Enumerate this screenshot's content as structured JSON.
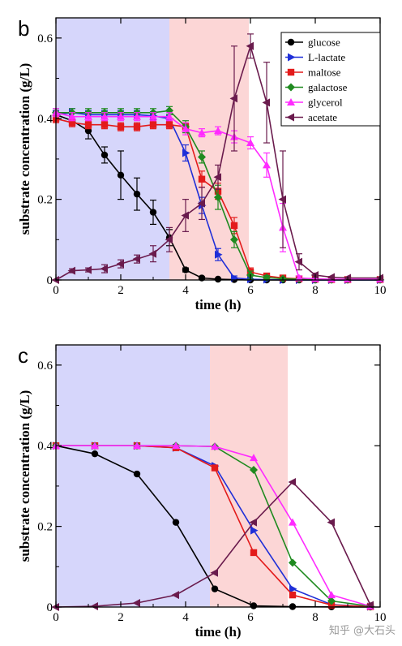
{
  "watermark": "知乎 @大石头",
  "colors": {
    "phase1": "#d6d6fb",
    "phase2": "#fcd6d6",
    "glucose": "#000000",
    "L-lactate": "#1f2fd8",
    "maltose": "#e31b1b",
    "galactose": "#1f8a1f",
    "glycerol": "#ff2bff",
    "acetate": "#6a1b4d"
  },
  "chart_data": [
    {
      "panel": "b",
      "type": "line",
      "xlabel": "time (h)",
      "ylabel": "substrate concentration (g/L)",
      "xlim": [
        0,
        10
      ],
      "ylim": [
        0,
        0.65
      ],
      "xticks": [
        "0",
        "2",
        "4",
        "6",
        "8",
        "10"
      ],
      "yticks": [
        "0",
        "0.2",
        "0.4",
        "0.6"
      ],
      "shaded_regions": [
        {
          "from": 0,
          "to": 3.5,
          "color": "phase1"
        },
        {
          "from": 3.5,
          "to": 5.95,
          "color": "phase2"
        }
      ],
      "legend": "top-right",
      "series": [
        {
          "name": "glucose",
          "marker": "circle",
          "x": [
            0,
            0.5,
            1,
            1.5,
            2,
            2.5,
            3,
            3.5,
            4,
            4.5,
            5,
            5.5,
            6,
            6.5,
            7,
            7.5,
            8,
            8.5,
            9,
            10
          ],
          "y": [
            0.41,
            0.395,
            0.37,
            0.31,
            0.26,
            0.213,
            0.168,
            0.105,
            0.025,
            0.005,
            0.002,
            0.001,
            0,
            0,
            0,
            0,
            0,
            0,
            0,
            0
          ],
          "err": [
            0.01,
            0.01,
            0.02,
            0.02,
            0.06,
            0.04,
            0.03,
            0.02,
            0.005,
            0.003,
            0,
            0,
            0,
            0,
            0,
            0,
            0,
            0,
            0,
            0
          ]
        },
        {
          "name": "L-lactate",
          "marker": "triangle-right",
          "x": [
            0,
            0.5,
            1,
            1.5,
            2,
            2.5,
            3,
            3.5,
            4,
            4.5,
            5,
            5.5,
            6,
            6.5,
            7,
            7.5,
            8,
            8.5,
            9,
            10
          ],
          "y": [
            0.41,
            0.415,
            0.41,
            0.41,
            0.41,
            0.41,
            0.407,
            0.4,
            0.315,
            0.185,
            0.063,
            0.005,
            0.002,
            0.001,
            0,
            0,
            0,
            0,
            0,
            0
          ],
          "err": [
            0.01,
            0.01,
            0.01,
            0.01,
            0.01,
            0.01,
            0.01,
            0.01,
            0.02,
            0.02,
            0.015,
            0.005,
            0,
            0,
            0,
            0,
            0,
            0,
            0,
            0
          ]
        },
        {
          "name": "maltose",
          "marker": "square",
          "x": [
            0,
            0.5,
            1,
            1.5,
            2,
            2.5,
            3,
            3.5,
            4,
            4.5,
            5,
            5.5,
            6,
            6.5,
            7,
            7.5,
            8,
            8.5,
            9,
            10
          ],
          "y": [
            0.4,
            0.39,
            0.385,
            0.385,
            0.38,
            0.38,
            0.385,
            0.385,
            0.38,
            0.25,
            0.22,
            0.135,
            0.02,
            0.01,
            0.005,
            0.003,
            0.002,
            0.001,
            0.001,
            0.001
          ],
          "err": [
            0.01,
            0.01,
            0.01,
            0.01,
            0.01,
            0.01,
            0.01,
            0.01,
            0.01,
            0.02,
            0.02,
            0.02,
            0.01,
            0.005,
            0,
            0,
            0,
            0,
            0,
            0
          ]
        },
        {
          "name": "galactose",
          "marker": "diamond",
          "x": [
            0,
            0.5,
            1,
            1.5,
            2,
            2.5,
            3,
            3.5,
            4,
            4.5,
            5,
            5.5,
            6,
            6.5,
            7,
            7.5,
            8,
            8.5,
            9,
            10
          ],
          "y": [
            0.415,
            0.415,
            0.415,
            0.415,
            0.415,
            0.415,
            0.415,
            0.42,
            0.38,
            0.305,
            0.205,
            0.1,
            0.012,
            0.006,
            0.003,
            0.002,
            0.001,
            0.001,
            0.001,
            0.001
          ],
          "err": [
            0.01,
            0.01,
            0.01,
            0.01,
            0.01,
            0.01,
            0.01,
            0.01,
            0.015,
            0.015,
            0.03,
            0.02,
            0.01,
            0.005,
            0,
            0,
            0,
            0,
            0,
            0
          ]
        },
        {
          "name": "glycerol",
          "marker": "triangle-up",
          "x": [
            0,
            0.5,
            1,
            1.5,
            2,
            2.5,
            3,
            3.5,
            4,
            4.5,
            5,
            5.5,
            6,
            6.5,
            7,
            7.5,
            8,
            8.5,
            9,
            10
          ],
          "y": [
            0.415,
            0.405,
            0.405,
            0.405,
            0.405,
            0.405,
            0.405,
            0.405,
            0.375,
            0.365,
            0.37,
            0.355,
            0.34,
            0.285,
            0.13,
            0.005,
            0.003,
            0.002,
            0.002,
            0.002
          ],
          "err": [
            0.01,
            0.01,
            0.01,
            0.01,
            0.01,
            0.01,
            0.01,
            0.01,
            0.015,
            0.01,
            0.01,
            0.015,
            0.015,
            0.03,
            0.06,
            0.005,
            0,
            0,
            0,
            0
          ]
        },
        {
          "name": "acetate",
          "marker": "triangle-left",
          "x": [
            0,
            0.5,
            1,
            1.5,
            2,
            2.5,
            3,
            3.5,
            4,
            4.5,
            5,
            5.5,
            6,
            6.5,
            7,
            7.5,
            8,
            8.5,
            9,
            10
          ],
          "y": [
            0,
            0.023,
            0.025,
            0.028,
            0.04,
            0.052,
            0.065,
            0.1,
            0.16,
            0.19,
            0.255,
            0.45,
            0.58,
            0.44,
            0.2,
            0.045,
            0.012,
            0.007,
            0.005,
            0.005
          ],
          "err": [
            0,
            0.005,
            0.005,
            0.01,
            0.01,
            0.01,
            0.02,
            0.03,
            0.04,
            0.04,
            0.03,
            0.13,
            0.03,
            0.1,
            0.12,
            0.02,
            0.005,
            0,
            0,
            0
          ]
        }
      ]
    },
    {
      "panel": "c",
      "type": "line",
      "xlabel": "time (h)",
      "ylabel": "substrate concentration (g/L)",
      "xlim": [
        0,
        10
      ],
      "ylim": [
        0,
        0.65
      ],
      "xticks": [
        "0",
        "2",
        "4",
        "6",
        "8",
        "10"
      ],
      "yticks": [
        "0",
        "0.2",
        "0.4",
        "0.6"
      ],
      "shaded_regions": [
        {
          "from": 0,
          "to": 4.75,
          "color": "phase1"
        },
        {
          "from": 4.75,
          "to": 7.15,
          "color": "phase2"
        }
      ],
      "series": [
        {
          "name": "glucose",
          "marker": "circle",
          "x": [
            0,
            1.2,
            2.5,
            3.7,
            4.9,
            6.1,
            7.3,
            8.5,
            9.7
          ],
          "y": [
            0.4,
            0.38,
            0.33,
            0.21,
            0.045,
            0.003,
            0.001,
            0.0005,
            0
          ]
        },
        {
          "name": "L-lactate",
          "marker": "triangle-right",
          "x": [
            0,
            1.2,
            2.5,
            3.7,
            4.9,
            6.1,
            7.3,
            8.5,
            9.7
          ],
          "y": [
            0.4,
            0.4,
            0.4,
            0.395,
            0.35,
            0.19,
            0.045,
            0.006,
            0.001
          ]
        },
        {
          "name": "maltose",
          "marker": "square",
          "x": [
            0,
            1.2,
            2.5,
            3.7,
            4.9,
            6.1,
            7.3,
            8.5,
            9.7
          ],
          "y": [
            0.4,
            0.4,
            0.4,
            0.395,
            0.345,
            0.135,
            0.03,
            0.005,
            0.001
          ]
        },
        {
          "name": "galactose",
          "marker": "diamond",
          "x": [
            0,
            1.2,
            2.5,
            3.7,
            4.9,
            6.1,
            7.3,
            8.5,
            9.7
          ],
          "y": [
            0.4,
            0.4,
            0.4,
            0.4,
            0.398,
            0.34,
            0.11,
            0.015,
            0.002
          ]
        },
        {
          "name": "glycerol",
          "marker": "triangle-up",
          "x": [
            0,
            1.2,
            2.5,
            3.7,
            4.9,
            6.1,
            7.3,
            8.5,
            9.7
          ],
          "y": [
            0.4,
            0.4,
            0.4,
            0.4,
            0.398,
            0.37,
            0.21,
            0.03,
            0.002
          ]
        },
        {
          "name": "acetate",
          "marker": "triangle-left",
          "x": [
            0,
            1.2,
            2.5,
            3.7,
            4.9,
            6.1,
            7.3,
            8.5,
            9.7
          ],
          "y": [
            0,
            0.002,
            0.01,
            0.03,
            0.085,
            0.21,
            0.31,
            0.21,
            0.005
          ]
        }
      ]
    }
  ]
}
